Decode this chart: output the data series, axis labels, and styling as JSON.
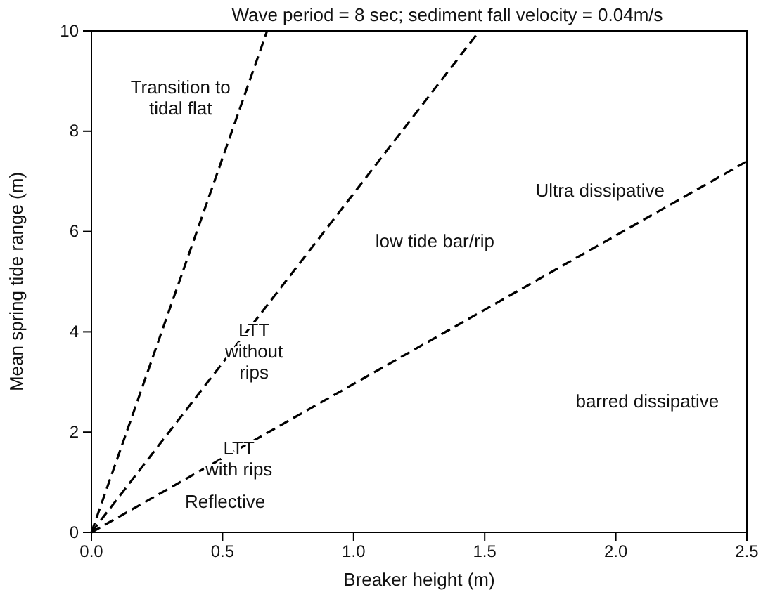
{
  "chart_data": {
    "type": "line",
    "title": "Wave period = 8 sec;  sediment fall velocity = 0.04m/s",
    "xlabel": "Breaker height (m)",
    "ylabel": "Mean spring tide range (m)",
    "xlim": [
      0,
      2.5
    ],
    "ylim": [
      0,
      10
    ],
    "xticks": [
      {
        "value": 0,
        "label": "0.0"
      },
      {
        "value": 0.5,
        "label": "0.5"
      },
      {
        "value": 1,
        "label": "1.0"
      },
      {
        "value": 1.5,
        "label": "1.5"
      },
      {
        "value": 2,
        "label": "2.0"
      },
      {
        "value": 2.5,
        "label": "2.5"
      }
    ],
    "yticks": [
      0,
      2,
      4,
      6,
      8,
      10
    ],
    "line_style": "dashed",
    "marker": "none",
    "grid": false,
    "series": [
      {
        "color": "#000000",
        "x": [
          0,
          0.67
        ],
        "values": [
          0,
          10
        ]
      },
      {
        "color": "#000000",
        "x": [
          0,
          1.48
        ],
        "values": [
          0,
          10
        ]
      },
      {
        "color": "#000000",
        "x": [
          0,
          2.5
        ],
        "values": [
          0,
          7.4
        ]
      }
    ],
    "annotations": [
      "Transition to\ntidal flat",
      "Ultra dissipative",
      "low tide bar/rip",
      "LTT\nwithout\nrips",
      "LTT\nwith rips",
      "barred dissipative",
      "Reflective"
    ]
  }
}
